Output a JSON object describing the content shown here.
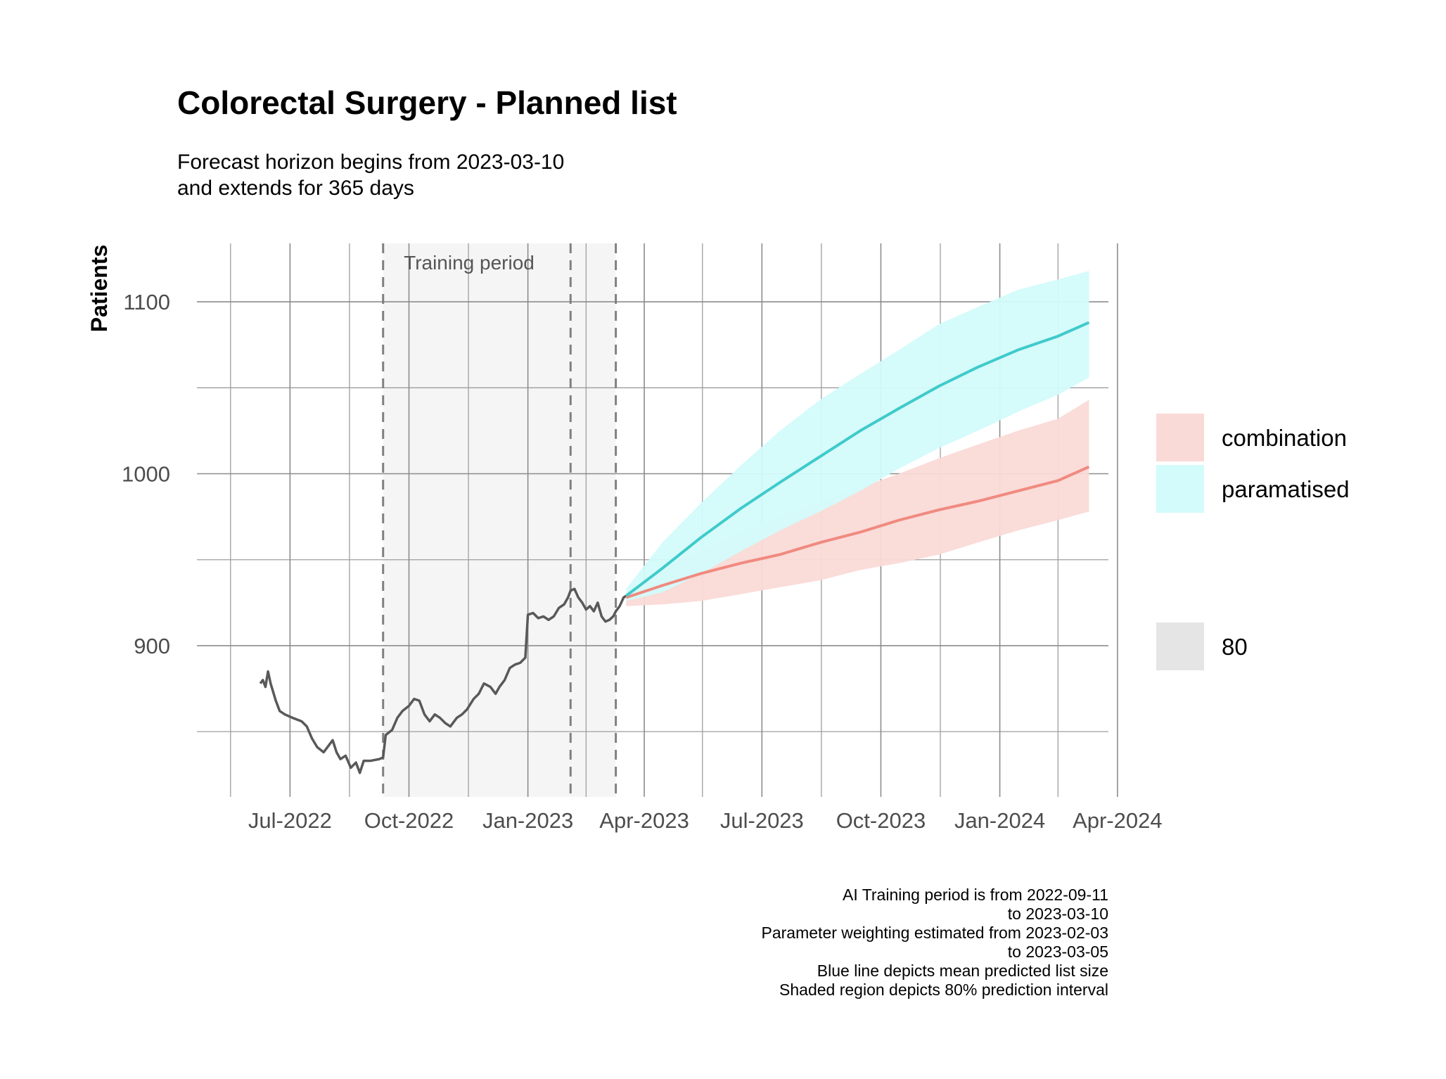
{
  "chart_data": {
    "type": "line",
    "title": "Colorectal Surgery - Planned list",
    "subtitle_lines": [
      "Forecast horizon begins from 2023-03-10",
      "and extends for 365 days"
    ],
    "xlabel": "",
    "ylabel": "Patients",
    "x_range": [
      "2022-04-20",
      "2024-03-25"
    ],
    "ylim": [
      812,
      1134
    ],
    "y_ticks": [
      900,
      1000,
      1100
    ],
    "y_minor_ticks": [
      850,
      950,
      1050
    ],
    "x_ticks": [
      {
        "date": "2022-07-01",
        "label": "Jul-2022"
      },
      {
        "date": "2022-10-01",
        "label": "Oct-2022"
      },
      {
        "date": "2023-01-01",
        "label": "Jan-2023"
      },
      {
        "date": "2023-04-01",
        "label": "Apr-2023"
      },
      {
        "date": "2023-07-01",
        "label": "Jul-2023"
      },
      {
        "date": "2023-10-01",
        "label": "Oct-2023"
      },
      {
        "date": "2024-01-01",
        "label": "Jan-2024"
      },
      {
        "date": "2024-04-01",
        "label": "Apr-2024"
      }
    ],
    "x_minor_ticks": [
      "2022-05-16",
      "2022-08-16",
      "2022-11-16",
      "2023-02-15",
      "2023-05-16",
      "2023-08-16",
      "2023-11-16",
      "2024-02-15"
    ],
    "shaded_region": {
      "label": "Training period",
      "from": "2022-09-11",
      "to": "2023-03-10",
      "color": "#f5f5f5"
    },
    "vlines": [
      "2022-09-11",
      "2023-02-03",
      "2023-03-10"
    ],
    "series": [
      {
        "kind": "observed",
        "color": "#595959",
        "points": [
          [
            "2022-06-08",
            878
          ],
          [
            "2022-06-10",
            880
          ],
          [
            "2022-06-12",
            876
          ],
          [
            "2022-06-14",
            885
          ],
          [
            "2022-06-16",
            878
          ],
          [
            "2022-06-20",
            868
          ],
          [
            "2022-06-23",
            862
          ],
          [
            "2022-06-27",
            860
          ],
          [
            "2022-07-03",
            858
          ],
          [
            "2022-07-10",
            856
          ],
          [
            "2022-07-14",
            853
          ],
          [
            "2022-07-18",
            846
          ],
          [
            "2022-07-22",
            841
          ],
          [
            "2022-07-27",
            838
          ],
          [
            "2022-07-31",
            842
          ],
          [
            "2022-08-03",
            845
          ],
          [
            "2022-08-06",
            838
          ],
          [
            "2022-08-09",
            834
          ],
          [
            "2022-08-13",
            836
          ],
          [
            "2022-08-17",
            829
          ],
          [
            "2022-08-21",
            832
          ],
          [
            "2022-08-24",
            826
          ],
          [
            "2022-08-27",
            833
          ],
          [
            "2022-09-01",
            833
          ],
          [
            "2022-09-08",
            834
          ],
          [
            "2022-09-11",
            835
          ],
          [
            "2022-09-13",
            848
          ],
          [
            "2022-09-18",
            851
          ],
          [
            "2022-09-22",
            858
          ],
          [
            "2022-09-26",
            862
          ],
          [
            "2022-10-01",
            865
          ],
          [
            "2022-10-05",
            869
          ],
          [
            "2022-10-09",
            868
          ],
          [
            "2022-10-13",
            860
          ],
          [
            "2022-10-17",
            856
          ],
          [
            "2022-10-21",
            860
          ],
          [
            "2022-10-25",
            858
          ],
          [
            "2022-10-29",
            855
          ],
          [
            "2022-11-02",
            853
          ],
          [
            "2022-11-07",
            858
          ],
          [
            "2022-11-11",
            860
          ],
          [
            "2022-11-15",
            863
          ],
          [
            "2022-11-20",
            869
          ],
          [
            "2022-11-24",
            872
          ],
          [
            "2022-11-28",
            878
          ],
          [
            "2022-12-03",
            876
          ],
          [
            "2022-12-07",
            872
          ],
          [
            "2022-12-10",
            876
          ],
          [
            "2022-12-14",
            880
          ],
          [
            "2022-12-18",
            887
          ],
          [
            "2022-12-22",
            889
          ],
          [
            "2022-12-26",
            890
          ],
          [
            "2022-12-30",
            893
          ],
          [
            "2023-01-01",
            918
          ],
          [
            "2023-01-05",
            919
          ],
          [
            "2023-01-09",
            916
          ],
          [
            "2023-01-13",
            917
          ],
          [
            "2023-01-17",
            915
          ],
          [
            "2023-01-21",
            917
          ],
          [
            "2023-01-25",
            922
          ],
          [
            "2023-01-29",
            924
          ],
          [
            "2023-02-01",
            928
          ],
          [
            "2023-02-03",
            932
          ],
          [
            "2023-02-06",
            933
          ],
          [
            "2023-02-09",
            928
          ],
          [
            "2023-02-12",
            925
          ],
          [
            "2023-02-15",
            921
          ],
          [
            "2023-02-18",
            923
          ],
          [
            "2023-02-21",
            920
          ],
          [
            "2023-02-24",
            925
          ],
          [
            "2023-02-27",
            917
          ],
          [
            "2023-03-02",
            914
          ],
          [
            "2023-03-05",
            915
          ],
          [
            "2023-03-08",
            917
          ],
          [
            "2023-03-10",
            920
          ],
          [
            "2023-03-13",
            923
          ],
          [
            "2023-03-16",
            928
          ],
          [
            "2023-03-18",
            929
          ]
        ]
      },
      {
        "name": "combination",
        "kind": "forecast",
        "line_color": "#f08a80",
        "band_color": "#fadad7",
        "mean": [
          [
            "2023-03-18",
            928
          ],
          [
            "2023-04-15",
            935
          ],
          [
            "2023-05-15",
            942
          ],
          [
            "2023-06-15",
            948
          ],
          [
            "2023-07-15",
            953
          ],
          [
            "2023-08-15",
            960
          ],
          [
            "2023-09-15",
            966
          ],
          [
            "2023-10-15",
            973
          ],
          [
            "2023-11-15",
            979
          ],
          [
            "2023-12-15",
            984
          ],
          [
            "2024-01-15",
            990
          ],
          [
            "2024-02-15",
            996
          ],
          [
            "2024-03-10",
            1004
          ]
        ],
        "lower": [
          [
            "2023-03-18",
            923
          ],
          [
            "2023-04-15",
            924
          ],
          [
            "2023-05-15",
            926
          ],
          [
            "2023-06-15",
            930
          ],
          [
            "2023-07-15",
            934
          ],
          [
            "2023-08-15",
            938
          ],
          [
            "2023-09-15",
            944
          ],
          [
            "2023-10-15",
            948
          ],
          [
            "2023-11-15",
            953
          ],
          [
            "2023-12-15",
            960
          ],
          [
            "2024-01-15",
            967
          ],
          [
            "2024-02-15",
            973
          ],
          [
            "2024-03-10",
            978
          ]
        ],
        "upper": [
          [
            "2023-03-18",
            931
          ],
          [
            "2023-04-15",
            944
          ],
          [
            "2023-05-15",
            956
          ],
          [
            "2023-06-15",
            966
          ],
          [
            "2023-07-15",
            975
          ],
          [
            "2023-08-15",
            984
          ],
          [
            "2023-09-15",
            992
          ],
          [
            "2023-10-15",
            1000
          ],
          [
            "2023-11-15",
            1009
          ],
          [
            "2023-12-15",
            1017
          ],
          [
            "2024-01-15",
            1025
          ],
          [
            "2024-02-15",
            1032
          ],
          [
            "2024-03-10",
            1043
          ]
        ]
      },
      {
        "name": "paramatised",
        "kind": "forecast",
        "line_color": "#3fcaca",
        "band_color": "#d3fbfb",
        "mean": [
          [
            "2023-03-18",
            929
          ],
          [
            "2023-04-15",
            945
          ],
          [
            "2023-05-15",
            963
          ],
          [
            "2023-06-15",
            980
          ],
          [
            "2023-07-15",
            995
          ],
          [
            "2023-08-15",
            1010
          ],
          [
            "2023-09-15",
            1025
          ],
          [
            "2023-10-15",
            1038
          ],
          [
            "2023-11-15",
            1051
          ],
          [
            "2023-12-15",
            1062
          ],
          [
            "2024-01-15",
            1072
          ],
          [
            "2024-02-15",
            1080
          ],
          [
            "2024-03-10",
            1088
          ]
        ],
        "lower": [
          [
            "2023-03-18",
            926
          ],
          [
            "2023-04-15",
            931
          ],
          [
            "2023-05-15",
            942
          ],
          [
            "2023-06-15",
            955
          ],
          [
            "2023-07-15",
            967
          ],
          [
            "2023-08-15",
            978
          ],
          [
            "2023-09-15",
            990
          ],
          [
            "2023-10-15",
            1003
          ],
          [
            "2023-11-15",
            1015
          ],
          [
            "2023-12-15",
            1025
          ],
          [
            "2024-01-15",
            1036
          ],
          [
            "2024-02-15",
            1046
          ],
          [
            "2024-03-10",
            1056
          ]
        ],
        "upper": [
          [
            "2023-03-18",
            933
          ],
          [
            "2023-04-15",
            960
          ],
          [
            "2023-05-15",
            983
          ],
          [
            "2023-06-15",
            1005
          ],
          [
            "2023-07-15",
            1025
          ],
          [
            "2023-08-15",
            1043
          ],
          [
            "2023-09-15",
            1058
          ],
          [
            "2023-10-15",
            1072
          ],
          [
            "2023-11-15",
            1087
          ],
          [
            "2023-12-15",
            1097
          ],
          [
            "2024-01-15",
            1107
          ],
          [
            "2024-02-15",
            1113
          ],
          [
            "2024-03-10",
            1118
          ]
        ]
      }
    ],
    "legend": {
      "placement": "right",
      "fill_items": [
        {
          "label": "combination",
          "color": "#fadad7"
        },
        {
          "label": "paramatised",
          "color": "#d3fbfb"
        }
      ],
      "level_item": {
        "label": "80",
        "color": "#e5e5e5"
      }
    },
    "caption_lines": [
      "AI Training period is from 2022-09-11",
      "to 2023-03-10",
      "Parameter weighting estimated from 2023-02-03",
      "to 2023-03-05",
      "Blue line depicts mean predicted list size",
      "Shaded region depicts 80% prediction interval"
    ]
  }
}
